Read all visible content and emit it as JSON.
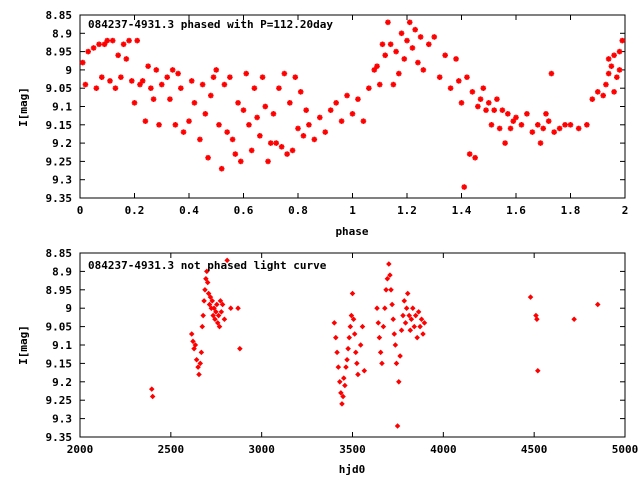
{
  "chart_data": [
    {
      "type": "scatter",
      "title": "084237-4931.3 phased with P=112.20day",
      "xlabel": "phase",
      "ylabel": "I[mag]",
      "xlim": [
        0,
        2
      ],
      "ylim": [
        8.85,
        9.35
      ],
      "y_inverted": true,
      "grid": false,
      "marker": "star",
      "color": "#ff0000",
      "x_ticks": [
        0,
        0.2,
        0.4,
        0.6,
        0.8,
        1,
        1.2,
        1.4,
        1.6,
        1.8,
        2
      ],
      "x_tick_labels": [
        "0",
        "0.2",
        "0.4",
        "0.6",
        "0.8",
        "1",
        "1.2",
        "1.4",
        "1.6",
        "1.8",
        "2"
      ],
      "y_ticks": [
        8.85,
        8.9,
        8.95,
        9,
        9.05,
        9.1,
        9.15,
        9.2,
        9.25,
        9.3,
        9.35
      ],
      "y_tick_labels": [
        "8.85",
        "8.9",
        "8.95",
        "9",
        "9.05",
        "9.1",
        "9.15",
        "9.2",
        "9.25",
        "9.3",
        "9.35"
      ],
      "points": [
        [
          0.01,
          8.98
        ],
        [
          0.02,
          9.04
        ],
        [
          0.03,
          8.95
        ],
        [
          0.05,
          8.94
        ],
        [
          0.06,
          9.05
        ],
        [
          0.07,
          8.93
        ],
        [
          0.08,
          9.02
        ],
        [
          0.09,
          8.93
        ],
        [
          0.1,
          8.92
        ],
        [
          0.11,
          9.03
        ],
        [
          0.12,
          8.92
        ],
        [
          0.13,
          9.05
        ],
        [
          0.14,
          8.96
        ],
        [
          0.15,
          9.02
        ],
        [
          0.16,
          8.93
        ],
        [
          0.17,
          8.97
        ],
        [
          0.18,
          8.92
        ],
        [
          0.19,
          9.03
        ],
        [
          0.2,
          9.09
        ],
        [
          0.21,
          8.92
        ],
        [
          0.22,
          9.04
        ],
        [
          0.23,
          9.03
        ],
        [
          0.24,
          9.14
        ],
        [
          0.25,
          8.99
        ],
        [
          0.26,
          9.05
        ],
        [
          0.27,
          9.08
        ],
        [
          0.28,
          9.0
        ],
        [
          0.29,
          9.15
        ],
        [
          0.3,
          9.04
        ],
        [
          0.32,
          9.02
        ],
        [
          0.33,
          9.08
        ],
        [
          0.34,
          9.0
        ],
        [
          0.35,
          9.15
        ],
        [
          0.36,
          9.01
        ],
        [
          0.37,
          9.05
        ],
        [
          0.38,
          9.17
        ],
        [
          0.4,
          9.14
        ],
        [
          0.41,
          9.03
        ],
        [
          0.42,
          9.09
        ],
        [
          0.44,
          9.19
        ],
        [
          0.45,
          9.04
        ],
        [
          0.46,
          9.12
        ],
        [
          0.47,
          9.24
        ],
        [
          0.48,
          9.07
        ],
        [
          0.49,
          9.02
        ],
        [
          0.5,
          9.0
        ],
        [
          0.51,
          9.15
        ],
        [
          0.52,
          9.27
        ],
        [
          0.53,
          9.04
        ],
        [
          0.54,
          9.17
        ],
        [
          0.55,
          9.02
        ],
        [
          0.56,
          9.19
        ],
        [
          0.57,
          9.23
        ],
        [
          0.58,
          9.09
        ],
        [
          0.59,
          9.25
        ],
        [
          0.6,
          9.11
        ],
        [
          0.61,
          9.01
        ],
        [
          0.62,
          9.15
        ],
        [
          0.63,
          9.22
        ],
        [
          0.64,
          9.05
        ],
        [
          0.65,
          9.13
        ],
        [
          0.66,
          9.18
        ],
        [
          0.67,
          9.02
        ],
        [
          0.68,
          9.1
        ],
        [
          0.69,
          9.25
        ],
        [
          0.7,
          9.2
        ],
        [
          0.71,
          9.12
        ],
        [
          0.72,
          9.2
        ],
        [
          0.73,
          9.05
        ],
        [
          0.74,
          9.21
        ],
        [
          0.75,
          9.01
        ],
        [
          0.76,
          9.23
        ],
        [
          0.77,
          9.09
        ],
        [
          0.78,
          9.22
        ],
        [
          0.79,
          9.02
        ],
        [
          0.8,
          9.16
        ],
        [
          0.81,
          9.06
        ],
        [
          0.82,
          9.18
        ],
        [
          0.83,
          9.11
        ],
        [
          0.84,
          9.15
        ],
        [
          0.86,
          9.19
        ],
        [
          0.88,
          9.13
        ],
        [
          0.9,
          9.17
        ],
        [
          0.92,
          9.11
        ],
        [
          0.94,
          9.09
        ],
        [
          0.96,
          9.14
        ],
        [
          0.98,
          9.07
        ],
        [
          1.0,
          9.12
        ],
        [
          1.02,
          9.08
        ],
        [
          1.04,
          9.14
        ],
        [
          1.06,
          9.05
        ],
        [
          1.08,
          9.0
        ],
        [
          1.09,
          8.99
        ],
        [
          1.1,
          9.04
        ],
        [
          1.11,
          8.93
        ],
        [
          1.12,
          8.96
        ],
        [
          1.13,
          8.87
        ],
        [
          1.14,
          8.93
        ],
        [
          1.15,
          9.04
        ],
        [
          1.16,
          8.95
        ],
        [
          1.17,
          9.01
        ],
        [
          1.18,
          8.9
        ],
        [
          1.19,
          8.97
        ],
        [
          1.2,
          8.92
        ],
        [
          1.21,
          8.87
        ],
        [
          1.22,
          8.94
        ],
        [
          1.23,
          8.89
        ],
        [
          1.24,
          8.98
        ],
        [
          1.25,
          8.91
        ],
        [
          1.26,
          9.0
        ],
        [
          1.28,
          8.93
        ],
        [
          1.3,
          8.91
        ],
        [
          1.32,
          9.02
        ],
        [
          1.34,
          8.96
        ],
        [
          1.36,
          9.05
        ],
        [
          1.38,
          8.97
        ],
        [
          1.39,
          9.03
        ],
        [
          1.4,
          9.09
        ],
        [
          1.41,
          9.32
        ],
        [
          1.42,
          9.02
        ],
        [
          1.43,
          9.23
        ],
        [
          1.44,
          9.06
        ],
        [
          1.45,
          9.24
        ],
        [
          1.46,
          9.1
        ],
        [
          1.47,
          9.08
        ],
        [
          1.48,
          9.05
        ],
        [
          1.49,
          9.11
        ],
        [
          1.5,
          9.09
        ],
        [
          1.51,
          9.15
        ],
        [
          1.52,
          9.11
        ],
        [
          1.53,
          9.08
        ],
        [
          1.54,
          9.16
        ],
        [
          1.55,
          9.11
        ],
        [
          1.56,
          9.2
        ],
        [
          1.57,
          9.12
        ],
        [
          1.58,
          9.16
        ],
        [
          1.59,
          9.14
        ],
        [
          1.6,
          9.13
        ],
        [
          1.62,
          9.15
        ],
        [
          1.64,
          9.12
        ],
        [
          1.66,
          9.17
        ],
        [
          1.68,
          9.15
        ],
        [
          1.69,
          9.2
        ],
        [
          1.7,
          9.16
        ],
        [
          1.71,
          9.12
        ],
        [
          1.72,
          9.14
        ],
        [
          1.73,
          9.01
        ],
        [
          1.74,
          9.17
        ],
        [
          1.76,
          9.16
        ],
        [
          1.78,
          9.15
        ],
        [
          1.8,
          9.15
        ],
        [
          1.83,
          9.16
        ],
        [
          1.86,
          9.15
        ],
        [
          1.88,
          9.08
        ],
        [
          1.9,
          9.06
        ],
        [
          1.92,
          9.07
        ],
        [
          1.93,
          9.04
        ],
        [
          1.94,
          9.01
        ],
        [
          1.95,
          8.99
        ],
        [
          1.96,
          9.06
        ],
        [
          1.97,
          9.02
        ],
        [
          1.98,
          8.95
        ],
        [
          1.99,
          8.92
        ],
        [
          1.94,
          8.97
        ],
        [
          1.96,
          8.96
        ],
        [
          1.98,
          9.0
        ]
      ]
    },
    {
      "type": "scatter",
      "title": "084237-4931.3 not phased light curve",
      "xlabel": "hjd0",
      "ylabel": "I[mag]",
      "xlim": [
        2000,
        5000
      ],
      "ylim": [
        8.85,
        9.35
      ],
      "y_inverted": true,
      "grid": false,
      "marker": "diamond",
      "color": "#ff0000",
      "x_ticks": [
        2000,
        2500,
        3000,
        3500,
        4000,
        4500,
        5000
      ],
      "x_tick_labels": [
        "2000",
        "2500",
        "3000",
        "3500",
        "4000",
        "4500",
        "5000"
      ],
      "y_ticks": [
        8.85,
        8.9,
        8.95,
        9,
        9.05,
        9.1,
        9.15,
        9.2,
        9.25,
        9.3,
        9.35
      ],
      "y_tick_labels": [
        "8.85",
        "8.9",
        "8.95",
        "9",
        "9.05",
        "9.1",
        "9.15",
        "9.2",
        "9.25",
        "9.3",
        "9.35"
      ],
      "points": [
        [
          2395,
          9.22
        ],
        [
          2400,
          9.24
        ],
        [
          2615,
          9.07
        ],
        [
          2622,
          9.09
        ],
        [
          2628,
          9.11
        ],
        [
          2635,
          9.1
        ],
        [
          2642,
          9.14
        ],
        [
          2650,
          9.16
        ],
        [
          2655,
          9.18
        ],
        [
          2662,
          9.15
        ],
        [
          2668,
          9.12
        ],
        [
          2673,
          9.05
        ],
        [
          2678,
          9.02
        ],
        [
          2683,
          8.98
        ],
        [
          2688,
          8.95
        ],
        [
          2693,
          8.92
        ],
        [
          2698,
          8.9
        ],
        [
          2703,
          8.93
        ],
        [
          2708,
          8.96
        ],
        [
          2713,
          8.99
        ],
        [
          2718,
          8.97
        ],
        [
          2723,
          9.0
        ],
        [
          2728,
          8.98
        ],
        [
          2733,
          9.02
        ],
        [
          2738,
          9.0
        ],
        [
          2743,
          9.03
        ],
        [
          2748,
          9.01
        ],
        [
          2753,
          8.99
        ],
        [
          2758,
          9.04
        ],
        [
          2763,
          9.02
        ],
        [
          2768,
          9.05
        ],
        [
          2773,
          8.98
        ],
        [
          2778,
          9.01
        ],
        [
          2785,
          8.99
        ],
        [
          2795,
          9.03
        ],
        [
          2810,
          8.87
        ],
        [
          2830,
          9.0
        ],
        [
          2870,
          9.0
        ],
        [
          2880,
          9.11
        ],
        [
          3400,
          9.04
        ],
        [
          3408,
          9.08
        ],
        [
          3415,
          9.12
        ],
        [
          3422,
          9.16
        ],
        [
          3430,
          9.2
        ],
        [
          3436,
          9.23
        ],
        [
          3442,
          9.26
        ],
        [
          3448,
          9.24
        ],
        [
          3452,
          9.19
        ],
        [
          3458,
          9.21
        ],
        [
          3464,
          9.16
        ],
        [
          3470,
          9.14
        ],
        [
          3476,
          9.11
        ],
        [
          3482,
          9.08
        ],
        [
          3488,
          9.05
        ],
        [
          3494,
          9.02
        ],
        [
          3500,
          8.96
        ],
        [
          3506,
          9.03
        ],
        [
          3512,
          9.07
        ],
        [
          3518,
          9.12
        ],
        [
          3524,
          9.15
        ],
        [
          3530,
          9.18
        ],
        [
          3545,
          9.1
        ],
        [
          3555,
          9.05
        ],
        [
          3565,
          9.17
        ],
        [
          3635,
          9.0
        ],
        [
          3642,
          9.04
        ],
        [
          3648,
          9.08
        ],
        [
          3655,
          9.12
        ],
        [
          3662,
          9.15
        ],
        [
          3670,
          9.05
        ],
        [
          3678,
          9.0
        ],
        [
          3685,
          8.95
        ],
        [
          3692,
          8.92
        ],
        [
          3700,
          8.88
        ],
        [
          3706,
          8.91
        ],
        [
          3712,
          8.95
        ],
        [
          3718,
          8.99
        ],
        [
          3724,
          9.03
        ],
        [
          3730,
          9.07
        ],
        [
          3736,
          9.1
        ],
        [
          3742,
          9.15
        ],
        [
          3748,
          9.32
        ],
        [
          3755,
          9.2
        ],
        [
          3762,
          9.13
        ],
        [
          3770,
          9.06
        ],
        [
          3778,
          9.02
        ],
        [
          3785,
          8.98
        ],
        [
          3792,
          9.04
        ],
        [
          3798,
          9.0
        ],
        [
          3804,
          8.96
        ],
        [
          3812,
          9.02
        ],
        [
          3818,
          9.06
        ],
        [
          3824,
          9.03
        ],
        [
          3832,
          9.0
        ],
        [
          3840,
          9.05
        ],
        [
          3848,
          9.02
        ],
        [
          3856,
          9.08
        ],
        [
          3864,
          9.01
        ],
        [
          3872,
          9.05
        ],
        [
          3880,
          9.03
        ],
        [
          3888,
          9.07
        ],
        [
          3896,
          9.04
        ],
        [
          4480,
          8.97
        ],
        [
          4510,
          9.02
        ],
        [
          4515,
          9.03
        ],
        [
          4520,
          9.17
        ],
        [
          4720,
          9.03
        ],
        [
          4850,
          8.99
        ]
      ]
    }
  ]
}
